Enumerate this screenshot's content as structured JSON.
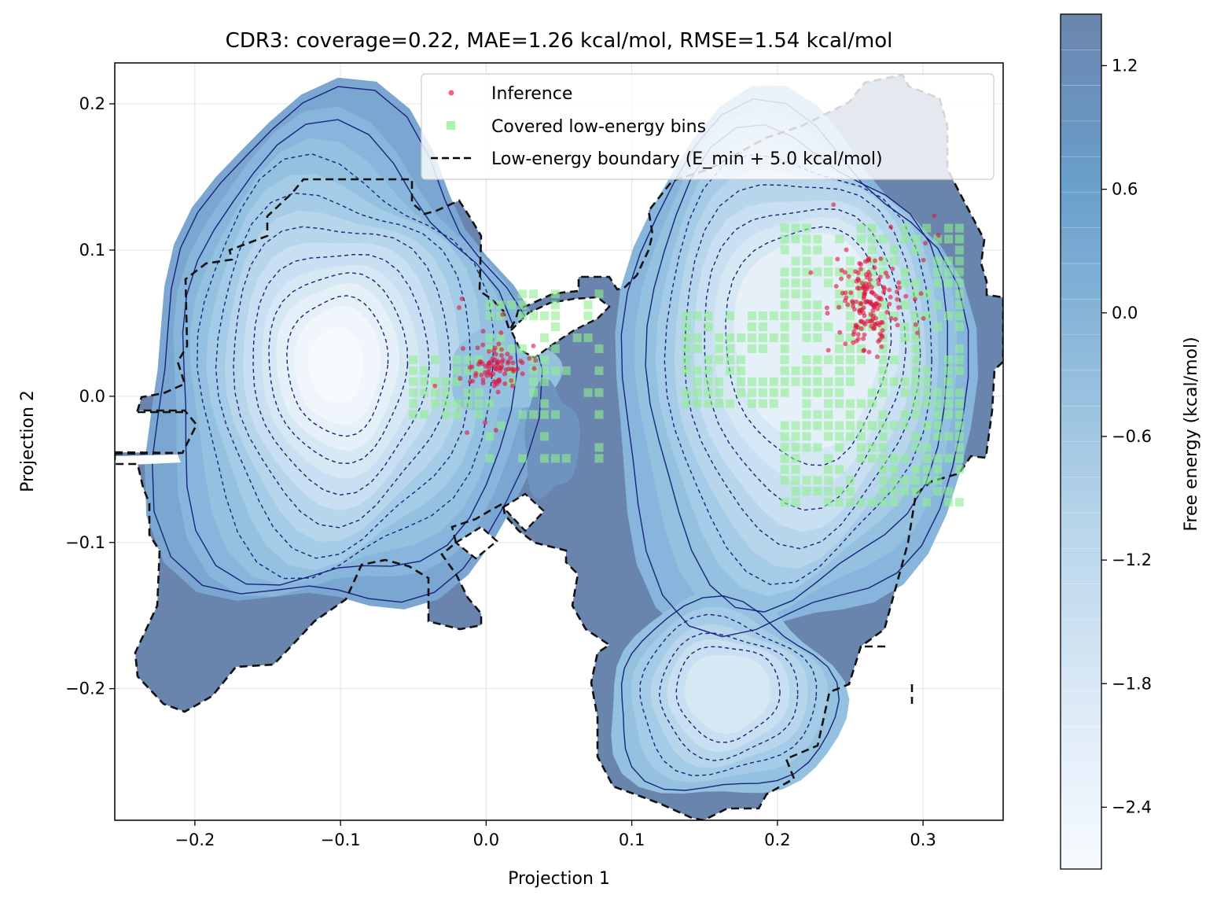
{
  "chart_data": {
    "type": "contour",
    "title": "CDR3: coverage=0.22, MAE=1.26 kcal/mol, RMSE=1.54 kcal/mol",
    "xlabel": "Projection 1",
    "ylabel": "Projection 2",
    "xlim": [
      -0.255,
      0.355
    ],
    "ylim": [
      -0.29,
      0.228
    ],
    "xticks": [
      -0.2,
      -0.1,
      0.0,
      0.1,
      0.2,
      0.3
    ],
    "xtick_labels": [
      "−0.2",
      "−0.1",
      "0.0",
      "0.1",
      "0.2",
      "0.3"
    ],
    "yticks": [
      -0.2,
      -0.1,
      0.0,
      0.1,
      0.2
    ],
    "ytick_labels": [
      "−0.2",
      "−0.1",
      "0.0",
      "0.1",
      "0.2"
    ],
    "grid": true,
    "legend_position": "top-right",
    "legend": [
      {
        "label": "Inference",
        "marker": "dot",
        "color": "#dc143c"
      },
      {
        "label": "Covered low-energy bins",
        "marker": "square",
        "color": "#90ee90"
      },
      {
        "label": "Low-energy boundary (E_min + 5.0 kcal/mol)",
        "marker": "dashed-line",
        "color": "#000000"
      }
    ],
    "colorbar": {
      "label": "Free energy (kcal/mol)",
      "min": -2.7,
      "max": 1.45,
      "ticks": [
        1.2,
        0.6,
        0.0,
        -0.6,
        -1.2,
        -1.8,
        -2.4
      ],
      "tick_labels": [
        "1.2",
        "0.6",
        "0.0",
        "−0.6",
        "−1.2",
        "−1.8",
        "−2.4"
      ],
      "colormap": "Blues_r",
      "color_low": "#f7fbff",
      "color_high": "#6a85ad"
    },
    "energy_minima": [
      {
        "x": -0.1,
        "y": 0.015,
        "energy": -2.7
      },
      {
        "x": 0.23,
        "y": 0.06,
        "energy": -1.7
      },
      {
        "x": 0.17,
        "y": -0.2,
        "energy": -1.8
      }
    ],
    "inference_clusters": [
      {
        "center_x": 0.263,
        "center_y": 0.065,
        "count": 170
      },
      {
        "center_x": 0.005,
        "center_y": 0.02,
        "count": 90
      }
    ],
    "covered_bins_x_range": [
      -0.05,
      0.34
    ],
    "covered_bins_y_range": [
      -0.08,
      0.12
    ]
  }
}
